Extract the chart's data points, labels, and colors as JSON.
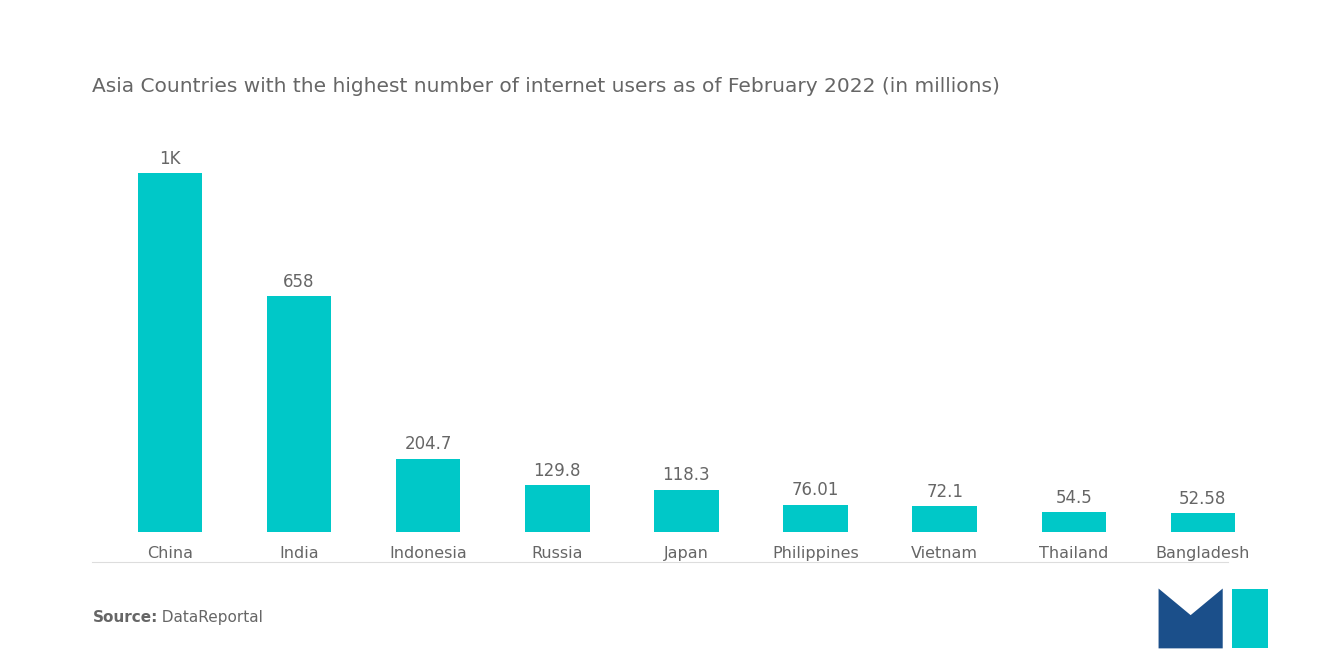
{
  "title": "Asia Countries with the highest number of internet users as of February 2022 (in millions)",
  "categories": [
    "China",
    "India",
    "Indonesia",
    "Russia",
    "Japan",
    "Philippines",
    "Vietnam",
    "Thailand",
    "Bangladesh"
  ],
  "values": [
    1000,
    658,
    204.7,
    129.8,
    118.3,
    76.01,
    72.1,
    54.5,
    52.58
  ],
  "labels": [
    "1K",
    "658",
    "204.7",
    "129.8",
    "118.3",
    "76.01",
    "72.1",
    "54.5",
    "52.58"
  ],
  "bar_color": "#00C8C8",
  "background_color": "#ffffff",
  "title_color": "#666666",
  "label_color": "#666666",
  "tick_color": "#666666",
  "source_bold": "Source:",
  "source_normal": "  DataReportal",
  "title_fontsize": 14.5,
  "label_fontsize": 12,
  "category_fontsize": 11.5,
  "source_fontsize": 11,
  "ylim": [
    0,
    1150
  ],
  "bar_width": 0.5,
  "logo_m_color": "#1B4F8A",
  "logo_i_color": "#00C8C8"
}
